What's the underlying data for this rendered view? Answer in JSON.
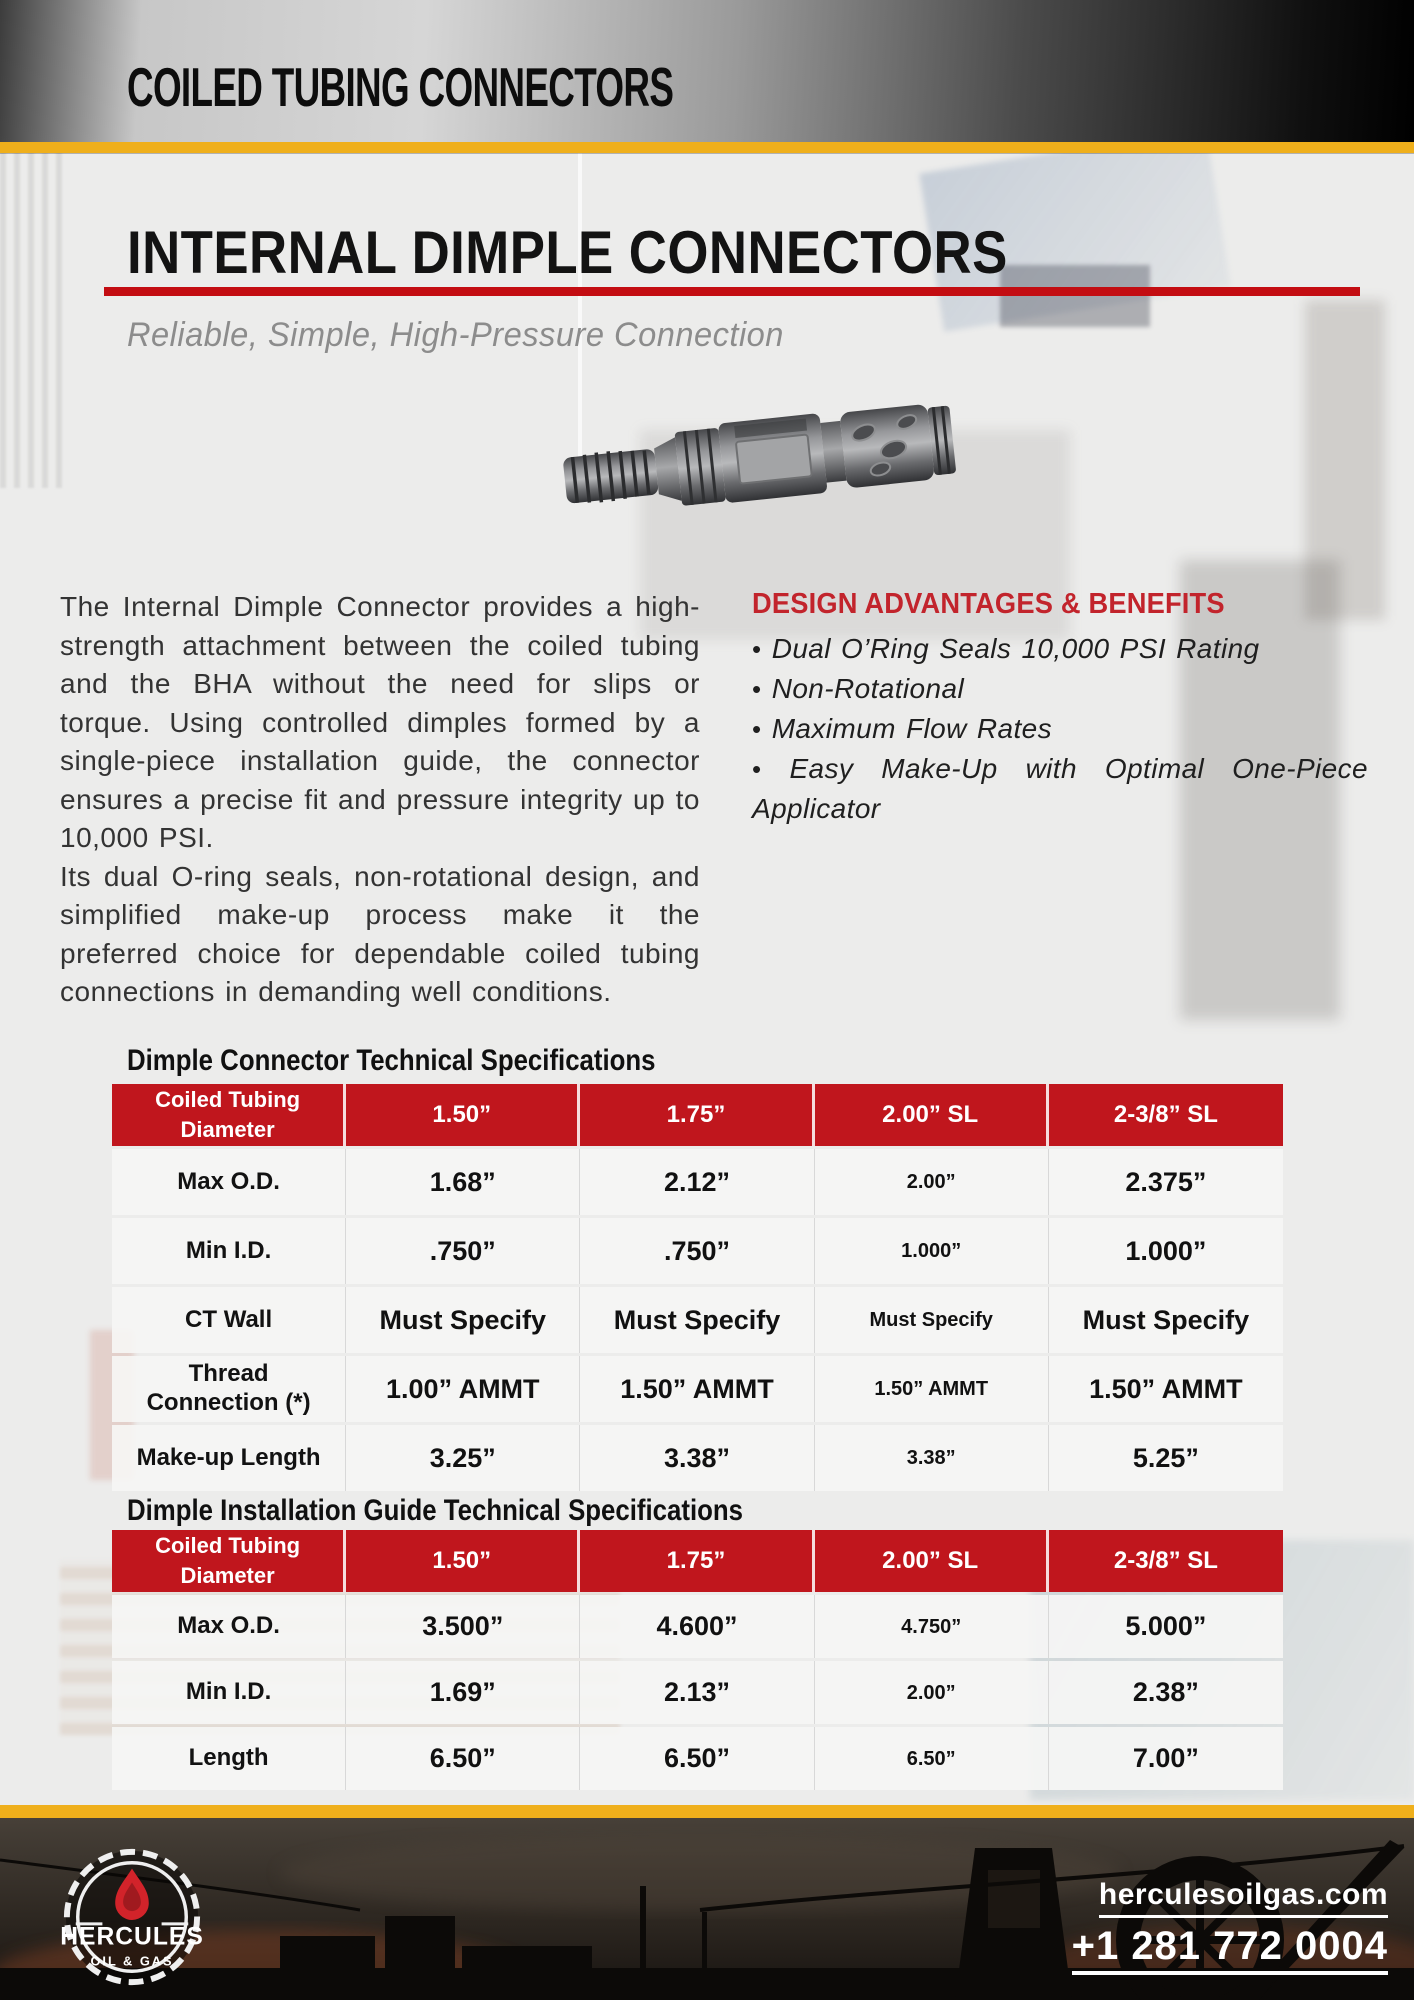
{
  "page": {
    "banner_title": "COILED TUBING CONNECTORS",
    "title": "INTERNAL DIMPLE CONNECTORS",
    "subtitle": "Reliable, Simple, High-Pressure Connection"
  },
  "intro": {
    "paragraph1": "The Internal Dimple Connector provides a high-strength attachment between the coiled tubing and the BHA without the need for slips or torque. Using controlled dimples formed by a single-piece installation guide, the connector ensures a precise fit and pressure integrity up to 10,000 PSI.",
    "paragraph2": "Its dual O-ring seals, non-rotational design, and simplified make-up process make it the preferred choice for dependable coiled tubing connections in demanding well conditions."
  },
  "benefits": {
    "heading": "DESIGN ADVANTAGES & BENEFITS",
    "bullet_glyph": "•",
    "items": [
      "Dual O’Ring Seals 10,000 PSI Rating",
      "Non-Rotational",
      "Maximum Flow Rates",
      "Easy Make-Up with Optimal One-Piece Applicator"
    ]
  },
  "tables": [
    {
      "heading": "Dimple Connector Technical Specifications",
      "header": [
        "Coiled Tubing Diameter",
        "1.50”",
        "1.75”",
        "2.00” SL",
        "2-3/8” SL"
      ],
      "rows": [
        [
          "Max O.D.",
          "1.68”",
          "2.12”",
          "2.00”",
          "2.375”"
        ],
        [
          "Min I.D.",
          ".750”",
          ".750”",
          "1.000”",
          "1.000”"
        ],
        [
          "CT Wall",
          "Must Specify",
          "Must Specify",
          "Must Specify",
          "Must Specify"
        ],
        [
          "Thread Connection (*)",
          "1.00” AMMT",
          "1.50” AMMT",
          "1.50” AMMT",
          "1.50” AMMT"
        ],
        [
          "Make-up Length",
          "3.25”",
          "3.38”",
          "3.38”",
          "5.25”"
        ]
      ]
    },
    {
      "heading": "Dimple Installation Guide Technical Specifications",
      "header": [
        "Coiled Tubing Diameter",
        "1.50”",
        "1.75”",
        "2.00” SL",
        "2-3/8” SL"
      ],
      "rows": [
        [
          "Max O.D.",
          "3.500”",
          "4.600”",
          "4.750”",
          "5.000”"
        ],
        [
          "Min I.D.",
          "1.69”",
          "2.13”",
          "2.00”",
          "2.38”"
        ],
        [
          "Length",
          "6.50”",
          "6.50”",
          "6.50”",
          "7.00”"
        ]
      ]
    }
  ],
  "footer": {
    "logo_name": "HERCULES",
    "logo_tagline": "OIL & GAS",
    "website": "herculesoilgas.com",
    "phone": "+1 281 772 0004"
  },
  "colors": {
    "accent_red": "#c0161d",
    "rule_red": "#c30d12",
    "benefits_red": "#c2242c",
    "brand_yellow": "#efaf1b",
    "footer_dark": "#181411"
  }
}
